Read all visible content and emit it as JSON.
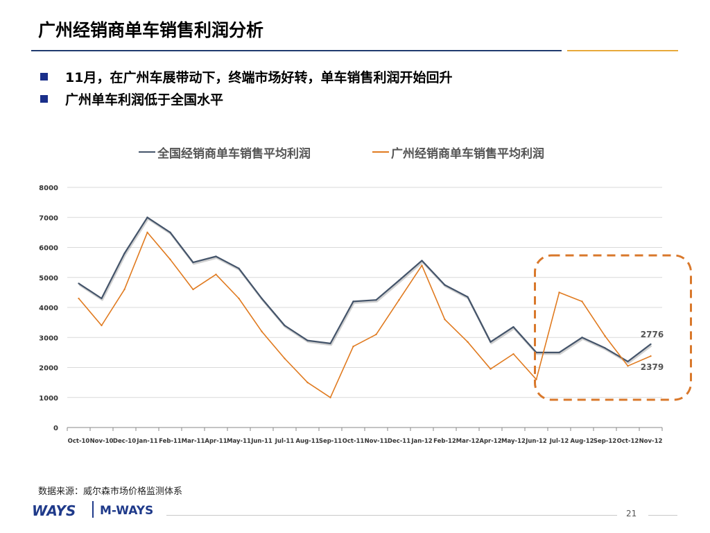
{
  "slide": {
    "title": "广州经销商单车销售利润分析",
    "bullets": [
      "11月，在广州车展带动下，终端市场好转，单车销售利润开始回升",
      "广州单车利润低于全国水平"
    ],
    "source": "数据来源：威尔森市场价格监测体系",
    "page_number": "21",
    "logo_ways": "WAYS",
    "logo_mways": "M-WAYS",
    "colors": {
      "title_rule": "#1f3a6e",
      "accent_rule": "#e8a93a",
      "bullet": "#1a2f8a",
      "highlight_box": "#d9782b"
    }
  },
  "chart_data": {
    "type": "line",
    "categories": [
      "Oct-10",
      "Nov-10",
      "Dec-10",
      "Jan-11",
      "Feb-11",
      "Mar-11",
      "Apr-11",
      "May-11",
      "Jun-11",
      "Jul-11",
      "Aug-11",
      "Sep-11",
      "Oct-11",
      "Nov-11",
      "Dec-11",
      "Jan-12",
      "Feb-12",
      "Mar-12",
      "Apr-12",
      "May-12",
      "Jun-12",
      "Jul-12",
      "Aug-12",
      "Sep-12",
      "Oct-12",
      "Nov-12"
    ],
    "series": [
      {
        "name": "全国经销商单车销售平均利润",
        "color": "#44546a",
        "values": [
          4800,
          4300,
          5800,
          7000,
          6500,
          5500,
          5700,
          5300,
          4300,
          3400,
          2900,
          2800,
          4200,
          4250,
          4900,
          5560,
          4750,
          4350,
          2850,
          3350,
          2500,
          2500,
          3000,
          2650,
          2200,
          2776
        ],
        "end_label": "2776"
      },
      {
        "name": "广州经销商单车销售平均利润",
        "color": "#e07a1f",
        "values": [
          4300,
          3400,
          4600,
          6500,
          5600,
          4600,
          5100,
          4300,
          3200,
          2300,
          1500,
          1000,
          2700,
          3100,
          4250,
          5400,
          3600,
          2850,
          1950,
          2450,
          1600,
          4500,
          4200,
          3050,
          2050,
          2379
        ],
        "end_label": "2379"
      }
    ],
    "ylim": [
      0,
      8000
    ],
    "yticks": [
      0,
      1000,
      2000,
      3000,
      4000,
      5000,
      6000,
      7000,
      8000
    ],
    "legend": "top",
    "grid": true,
    "highlight_range": [
      "Jun-12",
      "Nov-12"
    ]
  }
}
